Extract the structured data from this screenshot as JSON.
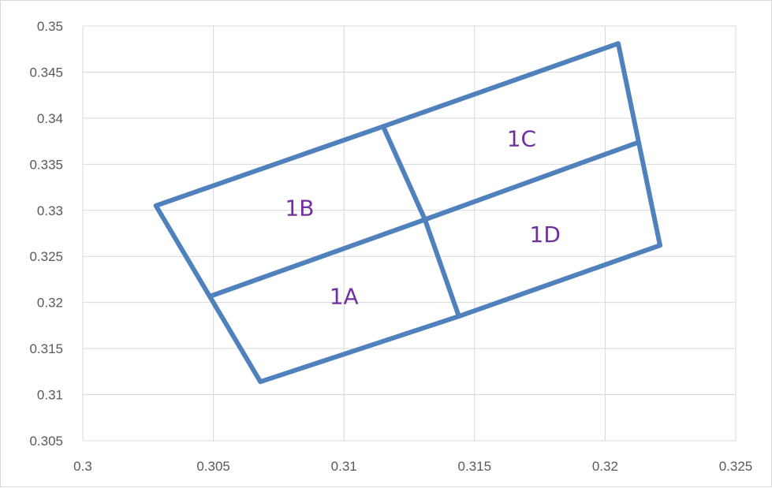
{
  "chart_data": {
    "type": "scatter",
    "title": "",
    "xlabel": "",
    "ylabel": "",
    "xlim": [
      0.3,
      0.325
    ],
    "ylim": [
      0.305,
      0.35
    ],
    "x_ticks": [
      "0.3",
      "0.305",
      "0.31",
      "0.315",
      "0.32",
      "0.325"
    ],
    "y_ticks": [
      "0.305",
      "0.31",
      "0.315",
      "0.32",
      "0.325",
      "0.33",
      "0.335",
      "0.34",
      "0.345",
      "0.35"
    ],
    "grid": true,
    "legend": "none",
    "line_color": "#4f81bd",
    "label_color": "#7030a0",
    "series": [
      {
        "points": [
          [
            0.3028,
            0.3305
          ],
          [
            0.3115,
            0.3391
          ],
          [
            0.3205,
            0.3481
          ],
          [
            0.3221,
            0.3262
          ],
          [
            0.3144,
            0.3185
          ],
          [
            0.3068,
            0.3114
          ],
          [
            0.3028,
            0.3305
          ]
        ]
      },
      {
        "points": [
          [
            0.3049,
            0.3207
          ],
          [
            0.3131,
            0.329
          ],
          [
            0.3212,
            0.3373
          ]
        ]
      },
      {
        "points": [
          [
            0.3115,
            0.3391
          ],
          [
            0.3131,
            0.329
          ],
          [
            0.3144,
            0.3185
          ]
        ]
      }
    ],
    "annotations": [
      {
        "text": "1A",
        "x": 0.31,
        "y": 0.3207
      },
      {
        "text": "1B",
        "x": 0.3083,
        "y": 0.3303
      },
      {
        "text": "1C",
        "x": 0.3168,
        "y": 0.3378
      },
      {
        "text": "1D",
        "x": 0.3177,
        "y": 0.3274
      }
    ]
  }
}
